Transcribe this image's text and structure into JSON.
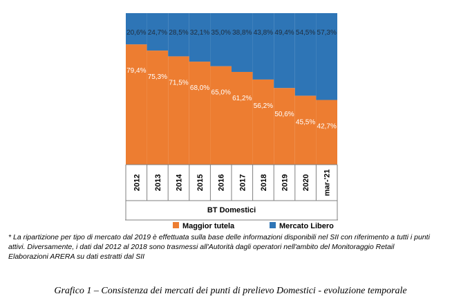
{
  "chart_data": {
    "type": "bar",
    "stacked": true,
    "percent": true,
    "categories": [
      "2012",
      "2013",
      "2014",
      "2015",
      "2016",
      "2017",
      "2018",
      "2019",
      "2020",
      "mar-'21"
    ],
    "series": [
      {
        "name": "Maggior tutela",
        "color": "#ED7D31",
        "values": [
          79.4,
          75.3,
          71.5,
          68.0,
          65.0,
          61.2,
          56.2,
          50.6,
          45.5,
          42.7
        ],
        "labels": [
          "79,4%",
          "75,3%",
          "71,5%",
          "68,0%",
          "65,0%",
          "61,2%",
          "56,2%",
          "50,6%",
          "45,5%",
          "42,7%"
        ]
      },
      {
        "name": "Mercato Libero",
        "color": "#2E75B6",
        "values": [
          20.6,
          24.7,
          28.5,
          32.1,
          35.0,
          38.8,
          43.8,
          49.4,
          54.5,
          57.3
        ],
        "labels": [
          "20,6%",
          "24,7%",
          "28,5%",
          "32,1%",
          "35,0%",
          "38,8%",
          "43,8%",
          "49,4%",
          "54,5%",
          "57,3%"
        ]
      }
    ],
    "xlabel": "BT Domestici",
    "ylabel": "",
    "ylim": [
      0,
      100
    ],
    "legend": "bottom"
  },
  "footnotes": {
    "line1": "* La ripartizione per tipo di mercato dal 2019 è effettuata sulla base delle informazioni disponibili nel SII con riferimento a tutti i punti",
    "line2": "attivi. Diversamente, i dati dal 2012 al 2018 sono trasmessi all'Autorità dagli operatori nell'ambito del Monitoraggio Retail",
    "line3": "Elaborazioni ARERA su dati estratti dal SII"
  },
  "caption": "Grafico 1 – Consistenza dei mercati dei punti di prelievo Domestici - evoluzione temporale"
}
